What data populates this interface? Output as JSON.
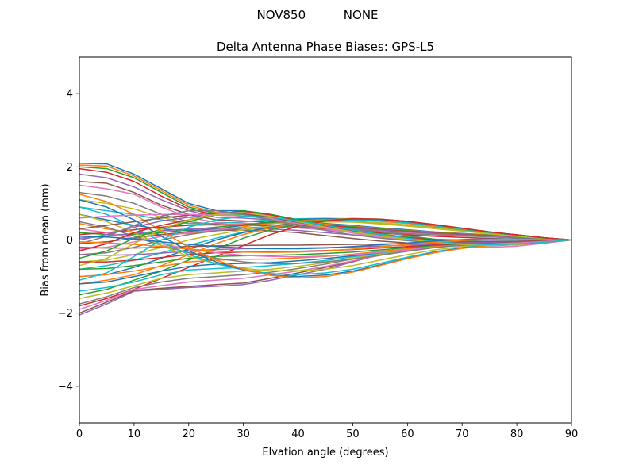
{
  "figure": {
    "suptitle": "NOV850          NONE"
  },
  "chart_data": {
    "type": "line",
    "title": "Delta Antenna Phase Biases: GPS-L5",
    "xlabel": "Elvation angle (degrees)",
    "ylabel": "Bias from mean (mm)",
    "xlim": [
      0,
      90
    ],
    "ylim": [
      -5,
      5
    ],
    "xticks": [
      0,
      10,
      20,
      30,
      40,
      50,
      60,
      70,
      80,
      90
    ],
    "yticks": [
      -4,
      -2,
      0,
      2,
      4
    ],
    "xtick_labels": [
      "0",
      "10",
      "20",
      "30",
      "40",
      "50",
      "60",
      "70",
      "80",
      "90"
    ],
    "ytick_labels": [
      "−4",
      "−2",
      "0",
      "2",
      "4"
    ],
    "grid": false,
    "legend": "none",
    "x": [
      0,
      5,
      10,
      15,
      20,
      25,
      30,
      35,
      40,
      45,
      50,
      55,
      60,
      65,
      70,
      75,
      80,
      85,
      90
    ],
    "color_cycle": [
      "#1f77b4",
      "#ff7f0e",
      "#2ca02c",
      "#d62728",
      "#9467bd",
      "#8c564b",
      "#e377c2",
      "#7f7f7f",
      "#bcbd22",
      "#17becf"
    ],
    "series": [
      {
        "values": [
          2.1,
          2.08,
          1.8,
          1.4,
          1.0,
          0.8,
          0.8,
          0.7,
          0.55,
          0.45,
          0.4,
          0.33,
          0.28,
          0.22,
          0.18,
          0.14,
          0.1,
          0.05,
          0.0
        ]
      },
      {
        "values": [
          2.05,
          2.02,
          1.75,
          1.35,
          0.95,
          0.75,
          0.75,
          0.65,
          0.52,
          0.43,
          0.38,
          0.31,
          0.26,
          0.21,
          0.17,
          0.13,
          0.09,
          0.05,
          0.0
        ]
      },
      {
        "values": [
          2.0,
          1.95,
          1.7,
          1.3,
          0.9,
          0.72,
          0.7,
          0.62,
          0.5,
          0.41,
          0.36,
          0.3,
          0.25,
          0.2,
          0.16,
          0.12,
          0.09,
          0.04,
          0.0
        ]
      },
      {
        "values": [
          1.95,
          1.85,
          1.6,
          1.2,
          0.85,
          0.68,
          0.66,
          0.58,
          0.47,
          0.39,
          0.34,
          0.28,
          0.23,
          0.19,
          0.15,
          0.12,
          0.08,
          0.04,
          0.0
        ]
      },
      {
        "values": [
          1.8,
          1.7,
          1.45,
          1.1,
          0.8,
          0.62,
          0.6,
          0.55,
          0.45,
          0.37,
          0.32,
          0.27,
          0.22,
          0.18,
          0.14,
          0.11,
          0.08,
          0.04,
          0.0
        ]
      },
      {
        "values": [
          1.6,
          1.55,
          1.3,
          0.95,
          0.7,
          0.55,
          0.52,
          0.48,
          0.4,
          0.33,
          0.29,
          0.24,
          0.2,
          0.16,
          0.13,
          0.1,
          0.07,
          0.03,
          0.0
        ]
      },
      {
        "values": [
          1.5,
          1.4,
          1.25,
          0.9,
          0.62,
          0.48,
          0.46,
          0.42,
          0.36,
          0.3,
          0.27,
          0.23,
          0.19,
          0.15,
          0.12,
          0.09,
          0.06,
          0.03,
          0.0
        ]
      },
      {
        "values": [
          1.3,
          1.2,
          1.0,
          0.7,
          0.5,
          0.42,
          0.4,
          0.38,
          0.33,
          0.28,
          0.25,
          0.21,
          0.17,
          0.14,
          0.11,
          0.08,
          0.06,
          0.03,
          0.0
        ]
      },
      {
        "values": [
          1.1,
          1.0,
          0.85,
          0.62,
          0.45,
          0.4,
          0.42,
          0.45,
          0.48,
          0.5,
          0.49,
          0.44,
          0.38,
          0.31,
          0.24,
          0.17,
          0.11,
          0.05,
          0.0
        ]
      },
      {
        "values": [
          0.9,
          0.8,
          0.7,
          0.55,
          0.45,
          0.45,
          0.5,
          0.55,
          0.58,
          0.59,
          0.58,
          0.54,
          0.48,
          0.4,
          0.31,
          0.22,
          0.14,
          0.06,
          0.0
        ]
      },
      {
        "values": [
          0.7,
          0.55,
          0.4,
          0.3,
          0.25,
          0.3,
          0.4,
          0.5,
          0.56,
          0.58,
          0.57,
          0.53,
          0.47,
          0.39,
          0.3,
          0.21,
          0.13,
          0.06,
          0.0
        ]
      },
      {
        "values": [
          0.45,
          0.3,
          0.2,
          0.15,
          0.18,
          0.26,
          0.36,
          0.46,
          0.53,
          0.56,
          0.55,
          0.51,
          0.45,
          0.37,
          0.29,
          0.2,
          0.12,
          0.05,
          0.0
        ]
      },
      {
        "values": [
          0.2,
          0.15,
          0.15,
          0.2,
          0.28,
          0.35,
          0.42,
          0.48,
          0.52,
          0.53,
          0.51,
          0.47,
          0.41,
          0.34,
          0.26,
          0.18,
          0.11,
          0.05,
          0.0
        ]
      },
      {
        "values": [
          0.15,
          0.2,
          0.28,
          0.35,
          0.4,
          0.42,
          0.42,
          0.4,
          0.36,
          0.3,
          0.24,
          0.19,
          0.14,
          0.1,
          0.07,
          0.04,
          0.02,
          0.01,
          0.0
        ]
      },
      {
        "values": [
          0.05,
          0.1,
          0.18,
          0.25,
          0.3,
          0.32,
          0.32,
          0.3,
          0.26,
          0.2,
          0.14,
          0.09,
          0.05,
          0.02,
          0.0,
          -0.01,
          -0.01,
          0.0,
          0.0
        ]
      },
      {
        "values": [
          -0.1,
          -0.05,
          0.05,
          0.15,
          0.22,
          0.26,
          0.27,
          0.25,
          0.2,
          0.12,
          0.04,
          -0.03,
          -0.08,
          -0.12,
          -0.15,
          -0.16,
          -0.13,
          -0.07,
          0.0
        ]
      },
      {
        "values": [
          -0.25,
          -0.2,
          -0.05,
          0.1,
          0.2,
          0.28,
          0.33,
          0.35,
          0.33,
          0.28,
          0.2,
          0.1,
          0.0,
          -0.1,
          -0.17,
          -0.2,
          -0.17,
          -0.09,
          0.0
        ]
      },
      {
        "values": [
          -0.4,
          -0.35,
          -0.2,
          0.0,
          0.15,
          0.25,
          0.32,
          0.36,
          0.37,
          0.35,
          0.3,
          0.22,
          0.12,
          0.02,
          -0.08,
          -0.14,
          -0.13,
          -0.07,
          0.0
        ]
      },
      {
        "values": [
          -0.6,
          -0.55,
          -0.4,
          -0.2,
          0.0,
          0.15,
          0.28,
          0.38,
          0.45,
          0.49,
          0.5,
          0.47,
          0.41,
          0.33,
          0.25,
          0.17,
          0.1,
          0.05,
          0.0
        ]
      },
      {
        "values": [
          -0.8,
          -0.7,
          -0.55,
          -0.35,
          -0.15,
          0.05,
          0.22,
          0.35,
          0.45,
          0.52,
          0.55,
          0.53,
          0.47,
          0.39,
          0.3,
          0.21,
          0.13,
          0.06,
          0.0
        ]
      },
      {
        "values": [
          -1.0,
          -0.95,
          -0.75,
          -0.5,
          -0.25,
          0.0,
          0.2,
          0.35,
          0.47,
          0.55,
          0.58,
          0.56,
          0.5,
          0.41,
          0.32,
          0.22,
          0.14,
          0.06,
          0.0
        ]
      },
      {
        "values": [
          -1.2,
          -1.1,
          -0.95,
          -0.7,
          -0.4,
          -0.1,
          0.15,
          0.33,
          0.46,
          0.55,
          0.59,
          0.57,
          0.51,
          0.42,
          0.32,
          0.22,
          0.14,
          0.06,
          0.0
        ]
      },
      {
        "values": [
          -1.5,
          -1.35,
          -1.1,
          -0.85,
          -0.55,
          -0.25,
          0.05,
          0.28,
          0.44,
          0.54,
          0.58,
          0.57,
          0.51,
          0.42,
          0.32,
          0.22,
          0.14,
          0.06,
          0.0
        ]
      },
      {
        "values": [
          -1.8,
          -1.6,
          -1.35,
          -1.05,
          -0.75,
          -0.45,
          -0.15,
          0.15,
          0.38,
          0.52,
          0.58,
          0.57,
          0.51,
          0.42,
          0.32,
          0.22,
          0.14,
          0.06,
          0.0
        ]
      },
      {
        "values": [
          -2.05,
          -1.75,
          -1.4,
          -1.35,
          -1.3,
          -1.27,
          -1.22,
          -1.1,
          -0.95,
          -0.8,
          -0.6,
          -0.4,
          -0.25,
          -0.15,
          -0.12,
          -0.12,
          -0.1,
          -0.05,
          0.0
        ]
      },
      {
        "values": [
          -2.0,
          -1.7,
          -1.38,
          -1.32,
          -1.27,
          -1.22,
          -1.18,
          -1.05,
          -0.9,
          -0.75,
          -0.58,
          -0.4,
          -0.26,
          -0.17,
          -0.14,
          -0.14,
          -0.11,
          -0.06,
          0.0
        ]
      },
      {
        "values": [
          -1.9,
          -1.65,
          -1.35,
          -1.25,
          -1.15,
          -1.1,
          -1.05,
          -0.95,
          -0.85,
          -0.72,
          -0.57,
          -0.42,
          -0.3,
          -0.2,
          -0.15,
          -0.14,
          -0.11,
          -0.06,
          0.0
        ]
      },
      {
        "values": [
          -1.75,
          -1.55,
          -1.3,
          -1.15,
          -1.05,
          -1.0,
          -0.95,
          -0.88,
          -0.78,
          -0.66,
          -0.52,
          -0.39,
          -0.28,
          -0.19,
          -0.14,
          -0.13,
          -0.1,
          -0.05,
          0.0
        ]
      },
      {
        "values": [
          -1.6,
          -1.45,
          -1.25,
          -1.05,
          -0.95,
          -0.9,
          -0.85,
          -0.8,
          -0.72,
          -0.62,
          -0.5,
          -0.38,
          -0.27,
          -0.18,
          -0.13,
          -0.12,
          -0.1,
          -0.05,
          0.0
        ]
      },
      {
        "values": [
          -1.4,
          -1.3,
          -1.15,
          -0.95,
          -0.82,
          -0.78,
          -0.75,
          -0.7,
          -0.64,
          -0.56,
          -0.46,
          -0.36,
          -0.26,
          -0.18,
          -0.13,
          -0.12,
          -0.09,
          -0.05,
          0.0
        ]
      },
      {
        "values": [
          -1.2,
          -1.15,
          -1.0,
          -0.85,
          -0.72,
          -0.66,
          -0.64,
          -0.62,
          -0.57,
          -0.51,
          -0.43,
          -0.34,
          -0.25,
          -0.17,
          -0.12,
          -0.11,
          -0.09,
          -0.04,
          0.0
        ]
      },
      {
        "values": [
          -1.0,
          -0.95,
          -0.85,
          -0.72,
          -0.6,
          -0.55,
          -0.53,
          -0.52,
          -0.49,
          -0.45,
          -0.39,
          -0.31,
          -0.24,
          -0.17,
          -0.12,
          -0.11,
          -0.08,
          -0.04,
          0.0
        ]
      },
      {
        "values": [
          -0.8,
          -0.78,
          -0.7,
          -0.6,
          -0.5,
          -0.45,
          -0.43,
          -0.42,
          -0.4,
          -0.37,
          -0.33,
          -0.27,
          -0.21,
          -0.15,
          -0.11,
          -0.1,
          -0.08,
          -0.04,
          0.0
        ]
      },
      {
        "values": [
          -0.6,
          -0.6,
          -0.55,
          -0.48,
          -0.4,
          -0.35,
          -0.33,
          -0.32,
          -0.31,
          -0.29,
          -0.26,
          -0.22,
          -0.18,
          -0.13,
          -0.1,
          -0.09,
          -0.07,
          -0.04,
          0.0
        ]
      },
      {
        "values": [
          -0.4,
          -0.42,
          -0.4,
          -0.36,
          -0.3,
          -0.26,
          -0.24,
          -0.23,
          -0.22,
          -0.21,
          -0.19,
          -0.17,
          -0.14,
          -0.11,
          -0.09,
          -0.08,
          -0.06,
          -0.03,
          0.0
        ]
      },
      {
        "values": [
          -0.2,
          -0.22,
          -0.22,
          -0.2,
          -0.18,
          -0.16,
          -0.15,
          -0.14,
          -0.14,
          -0.13,
          -0.12,
          -0.11,
          -0.1,
          -0.08,
          -0.07,
          -0.06,
          -0.05,
          -0.02,
          0.0
        ]
      },
      {
        "values": [
          0.3,
          0.2,
          0.05,
          -0.1,
          -0.25,
          -0.35,
          -0.42,
          -0.45,
          -0.46,
          -0.44,
          -0.4,
          -0.34,
          -0.27,
          -0.2,
          -0.14,
          -0.1,
          -0.07,
          -0.03,
          0.0
        ]
      },
      {
        "values": [
          0.5,
          0.35,
          0.1,
          -0.15,
          -0.35,
          -0.5,
          -0.6,
          -0.65,
          -0.64,
          -0.6,
          -0.52,
          -0.42,
          -0.31,
          -0.21,
          -0.14,
          -0.1,
          -0.07,
          -0.03,
          0.0
        ]
      },
      {
        "values": [
          0.7,
          0.5,
          0.2,
          -0.15,
          -0.45,
          -0.65,
          -0.78,
          -0.84,
          -0.84,
          -0.8,
          -0.7,
          -0.55,
          -0.4,
          -0.27,
          -0.18,
          -0.12,
          -0.08,
          -0.04,
          0.0
        ]
      },
      {
        "values": [
          0.9,
          0.7,
          0.35,
          -0.05,
          -0.4,
          -0.65,
          -0.82,
          -0.92,
          -0.95,
          -0.9,
          -0.8,
          -0.64,
          -0.47,
          -0.32,
          -0.21,
          -0.14,
          -0.09,
          -0.04,
          0.0
        ]
      },
      {
        "values": [
          1.1,
          0.9,
          0.55,
          0.1,
          -0.3,
          -0.6,
          -0.82,
          -0.96,
          -1.0,
          -0.96,
          -0.85,
          -0.68,
          -0.5,
          -0.34,
          -0.22,
          -0.15,
          -0.1,
          -0.05,
          0.0
        ]
      },
      {
        "values": [
          1.25,
          1.05,
          0.7,
          0.25,
          -0.2,
          -0.55,
          -0.8,
          -0.97,
          -1.04,
          -1.0,
          -0.88,
          -0.7,
          -0.51,
          -0.35,
          -0.23,
          -0.15,
          -0.1,
          -0.05,
          0.0
        ]
      },
      {
        "values": [
          -0.5,
          -0.3,
          0.05,
          0.3,
          0.5,
          0.7,
          0.8,
          0.7,
          0.55,
          0.4,
          0.27,
          0.16,
          0.08,
          0.02,
          -0.03,
          -0.05,
          -0.04,
          -0.02,
          0.0
        ]
      },
      {
        "values": [
          -0.3,
          -0.1,
          0.2,
          0.4,
          0.55,
          0.72,
          0.78,
          0.68,
          0.52,
          0.38,
          0.25,
          0.14,
          0.06,
          0.0,
          -0.04,
          -0.06,
          -0.05,
          -0.02,
          0.0
        ]
      },
      {
        "values": [
          0.0,
          0.15,
          0.35,
          0.52,
          0.62,
          0.74,
          0.76,
          0.66,
          0.5,
          0.36,
          0.23,
          0.12,
          0.04,
          -0.02,
          -0.06,
          -0.07,
          -0.06,
          -0.03,
          0.0
        ]
      },
      {
        "values": [
          0.3,
          0.4,
          0.5,
          0.6,
          0.68,
          0.72,
          0.72,
          0.62,
          0.48,
          0.34,
          0.21,
          0.1,
          0.02,
          -0.04,
          -0.08,
          -0.09,
          -0.07,
          -0.03,
          0.0
        ]
      },
      {
        "values": [
          0.6,
          0.65,
          0.68,
          0.7,
          0.7,
          0.68,
          0.66,
          0.58,
          0.45,
          0.32,
          0.19,
          0.08,
          0.0,
          -0.06,
          -0.1,
          -0.11,
          -0.08,
          -0.04,
          0.0
        ]
      },
      {
        "values": [
          -0.1,
          0.1,
          0.4,
          0.65,
          0.8,
          0.8,
          0.7,
          0.55,
          0.4,
          0.26,
          0.14,
          0.05,
          -0.02,
          -0.08,
          -0.13,
          -0.15,
          -0.12,
          -0.06,
          0.0
        ]
      },
      {
        "values": [
          -0.7,
          -0.5,
          -0.1,
          0.3,
          0.55,
          0.7,
          0.75,
          0.65,
          0.5,
          0.35,
          0.22,
          0.11,
          0.02,
          -0.06,
          -0.12,
          -0.15,
          -0.13,
          -0.06,
          0.0
        ]
      },
      {
        "values": [
          -1.1,
          -0.9,
          -0.45,
          0.0,
          0.35,
          0.55,
          0.65,
          0.62,
          0.52,
          0.4,
          0.27,
          0.15,
          0.05,
          -0.04,
          -0.1,
          -0.13,
          -0.11,
          -0.06,
          0.0
        ]
      },
      {
        "values": [
          0.1,
          0.08,
          0.03,
          -0.05,
          -0.12,
          -0.18,
          -0.22,
          -0.24,
          -0.24,
          -0.22,
          -0.18,
          -0.13,
          -0.08,
          -0.03,
          0.01,
          0.03,
          0.03,
          0.01,
          0.0
        ]
      },
      {
        "values": [
          -0.05,
          -0.08,
          -0.12,
          -0.18,
          -0.25,
          -0.3,
          -0.33,
          -0.34,
          -0.33,
          -0.3,
          -0.25,
          -0.19,
          -0.12,
          -0.06,
          -0.01,
          0.02,
          0.02,
          0.01,
          0.0
        ]
      }
    ]
  }
}
